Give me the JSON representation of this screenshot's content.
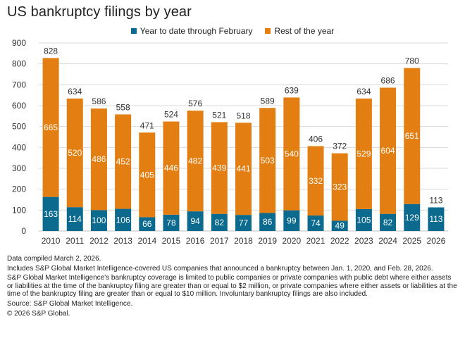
{
  "title": "US bankruptcy filings by year",
  "colors": {
    "ytd": "#0b6a8e",
    "rest": "#e37f12",
    "grid": "#d9d9d9",
    "axis": "#bfbfbf"
  },
  "legend": [
    {
      "label": "Year to date through February",
      "color": "#0b6a8e"
    },
    {
      "label": "Rest of the year",
      "color": "#e37f12"
    }
  ],
  "chart_data": {
    "type": "bar",
    "stacked": true,
    "title": "US bankruptcy filings by year",
    "categories": [
      "2010",
      "2011",
      "2012",
      "2013",
      "2014",
      "2015",
      "2016",
      "2017",
      "2018",
      "2019",
      "2020",
      "2021",
      "2022",
      "2023",
      "2024",
      "2025",
      "2026"
    ],
    "series": [
      {
        "name": "Year to date through February",
        "values": [
          163,
          114,
          100,
          106,
          66,
          78,
          94,
          82,
          77,
          86,
          99,
          74,
          49,
          105,
          82,
          129,
          113
        ]
      },
      {
        "name": "Rest of the year",
        "values": [
          665,
          520,
          486,
          452,
          405,
          446,
          482,
          439,
          441,
          503,
          540,
          332,
          323,
          529,
          604,
          651,
          null
        ]
      }
    ],
    "totals": [
      828,
      634,
      586,
      558,
      471,
      524,
      576,
      521,
      518,
      589,
      639,
      406,
      372,
      634,
      686,
      780,
      113
    ],
    "ylim": [
      0,
      900
    ],
    "yticks": [
      0,
      100,
      200,
      300,
      400,
      500,
      600,
      700,
      800,
      900
    ],
    "xlabel": "",
    "ylabel": "",
    "grid": true,
    "legend_position": "top-center"
  },
  "notes": [
    "Data compiled March 2, 2026.",
    "Includes S&P Global Market Intelligence-covered US companies that announced a bankruptcy between Jan. 1, 2020, and Feb. 28, 2026.",
    "S&P Global Market Intelligence's bankruptcy coverage is limited to public companies or private companies with public debt where either assets or liabilities at the time of the bankruptcy filing are greater than or equal to $2 million, or private companies where either assets or liabilities at the time of the bankruptcy filing are greater than or equal to $10 million. Involuntary bankruptcy filings are also included.",
    "Source: S&P Global Market Intelligence.",
    "© 2026 S&P Global."
  ]
}
